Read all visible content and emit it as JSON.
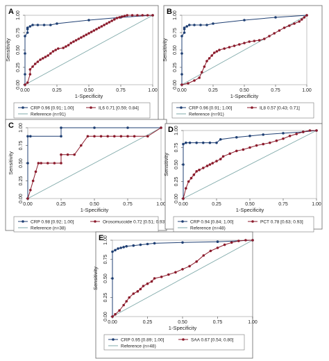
{
  "chart_data": [
    {
      "panel": "A",
      "type": "line",
      "xlabel": "1-Specificity",
      "ylabel": "Sensitivity",
      "xlim": [
        0,
        1
      ],
      "ylim": [
        0,
        1
      ],
      "xticks": [
        "0.00",
        "0.25",
        "0.50",
        "0.75",
        "1.00"
      ],
      "yticks": [
        "0.00",
        "0.25",
        "0.50",
        "0.75",
        "1.00"
      ],
      "legend_position": "bottom",
      "series": [
        {
          "name": "CRP 0.96 [0.91; 1.00]",
          "color": "#1f3f73",
          "marker": "circle",
          "x": [
            0,
            0,
            0,
            0,
            0.02,
            0.02,
            0.02,
            0.04,
            0.06,
            0.1,
            0.15,
            0.2,
            0.25,
            0.5,
            0.75,
            1.0
          ],
          "y": [
            0,
            0.15,
            0.45,
            0.7,
            0.75,
            0.8,
            0.82,
            0.84,
            0.86,
            0.86,
            0.86,
            0.86,
            0.88,
            0.93,
            0.97,
            1.0
          ]
        },
        {
          "name": "IL6 0.71 [0.59; 0.84]",
          "color": "#8b1a2b",
          "marker": "circle",
          "x": [
            0,
            0.02,
            0.04,
            0.04,
            0.06,
            0.08,
            0.1,
            0.12,
            0.14,
            0.16,
            0.18,
            0.2,
            0.22,
            0.24,
            0.26,
            0.3,
            0.32,
            0.34,
            0.36,
            0.38,
            0.4,
            0.42,
            0.44,
            0.46,
            0.48,
            0.5,
            0.52,
            0.54,
            0.56,
            0.58,
            0.6,
            0.62,
            0.64,
            0.66,
            0.68,
            0.7,
            0.72,
            0.74,
            0.76,
            0.78,
            0.8,
            0.84,
            0.88,
            0.92,
            0.96,
            1.0
          ],
          "y": [
            0,
            0.03,
            0.15,
            0.22,
            0.26,
            0.3,
            0.33,
            0.36,
            0.38,
            0.4,
            0.42,
            0.45,
            0.48,
            0.5,
            0.52,
            0.53,
            0.55,
            0.57,
            0.6,
            0.62,
            0.64,
            0.66,
            0.68,
            0.7,
            0.72,
            0.74,
            0.76,
            0.78,
            0.8,
            0.82,
            0.84,
            0.86,
            0.88,
            0.9,
            0.92,
            0.94,
            0.96,
            0.97,
            0.98,
            0.99,
            1.0,
            1.0,
            1.0,
            1.0,
            1.0,
            1.0
          ]
        }
      ],
      "reference": {
        "name": "Reference (n=91)",
        "color": "#7fa9a9"
      }
    },
    {
      "panel": "B",
      "type": "line",
      "xlabel": "1-Specificity",
      "ylabel": "Sensitivity",
      "xlim": [
        0,
        1
      ],
      "ylim": [
        0,
        1
      ],
      "xticks": [
        "0.00",
        "0.25",
        "0.50",
        "0.75",
        "1.00"
      ],
      "yticks": [
        "0.00",
        "0.25",
        "0.50",
        "0.75",
        "1.00"
      ],
      "legend_position": "bottom",
      "series": [
        {
          "name": "CRP 0.96 [0.91; 1.00]",
          "color": "#1f3f73",
          "marker": "circle",
          "x": [
            0,
            0,
            0,
            0,
            0.02,
            0.02,
            0.02,
            0.04,
            0.06,
            0.1,
            0.15,
            0.2,
            0.25,
            0.5,
            0.75,
            1.0
          ],
          "y": [
            0,
            0.15,
            0.45,
            0.7,
            0.75,
            0.8,
            0.82,
            0.84,
            0.86,
            0.86,
            0.86,
            0.86,
            0.88,
            0.93,
            0.97,
            1.0
          ]
        },
        {
          "name": "IL8 0.57 [0.43; 0.71]",
          "color": "#8b1a2b",
          "marker": "circle",
          "x": [
            0,
            0.05,
            0.1,
            0.14,
            0.16,
            0.18,
            0.2,
            0.22,
            0.24,
            0.26,
            0.28,
            0.3,
            0.34,
            0.38,
            0.42,
            0.46,
            0.5,
            0.54,
            0.58,
            0.62,
            0.66,
            0.7,
            0.74,
            0.78,
            0.82,
            0.86,
            0.9,
            0.94,
            0.96,
            0.98,
            1.0
          ],
          "y": [
            0,
            0.02,
            0.06,
            0.1,
            0.18,
            0.26,
            0.34,
            0.38,
            0.42,
            0.46,
            0.48,
            0.5,
            0.52,
            0.54,
            0.56,
            0.58,
            0.6,
            0.62,
            0.63,
            0.64,
            0.66,
            0.7,
            0.74,
            0.78,
            0.82,
            0.85,
            0.88,
            0.91,
            0.94,
            0.97,
            1.0
          ]
        }
      ],
      "reference": {
        "name": "Reference (n=91)",
        "color": "#7fa9a9"
      }
    },
    {
      "panel": "C",
      "type": "line",
      "xlabel": "1-Specificity",
      "ylabel": "Sensitivity",
      "xlim": [
        0,
        1
      ],
      "ylim": [
        0,
        1
      ],
      "xticks": [
        "0.00",
        "0.25",
        "0.50",
        "0.75",
        "1.00"
      ],
      "yticks": [
        "0.00",
        "0.25",
        "0.50",
        "0.75",
        "1.00"
      ],
      "legend_position": "bottom",
      "series": [
        {
          "name": "CRP 0.98 [0.92; 1.00]",
          "color": "#1f3f73",
          "marker": "circle",
          "x": [
            0,
            0,
            0,
            0.02,
            0.25,
            0.25,
            0.5,
            0.75,
            1.0
          ],
          "y": [
            0,
            0.5,
            0.88,
            0.88,
            0.88,
            1.0,
            1.0,
            1.0,
            1.0
          ]
        },
        {
          "name": "Orosomucoide 0.72 [0.51; 0.93]",
          "color": "#8b1a2b",
          "marker": "circle",
          "x": [
            0,
            0.02,
            0.04,
            0.06,
            0.08,
            0.1,
            0.15,
            0.2,
            0.25,
            0.25,
            0.3,
            0.35,
            0.4,
            0.45,
            0.5,
            0.55,
            0.6,
            0.65,
            0.7,
            0.75,
            0.8,
            0.9,
            1.0
          ],
          "y": [
            0,
            0.12,
            0.25,
            0.38,
            0.5,
            0.5,
            0.5,
            0.5,
            0.5,
            0.62,
            0.62,
            0.62,
            0.75,
            0.88,
            0.88,
            0.88,
            0.88,
            0.88,
            0.88,
            0.88,
            0.88,
            0.88,
            1.0
          ]
        }
      ],
      "reference": {
        "name": "Reference (n=38)",
        "color": "#7fa9a9"
      }
    },
    {
      "panel": "D",
      "type": "line",
      "xlabel": "1-Specificity",
      "ylabel": "Sensitivity",
      "xlim": [
        0,
        1
      ],
      "ylim": [
        0,
        1
      ],
      "xticks": [
        "0.00",
        "0.25",
        "0.50",
        "0.75",
        "1.00"
      ],
      "yticks": [
        "0.00",
        "0.25",
        "0.50",
        "0.75",
        "1.00"
      ],
      "legend_position": "bottom",
      "series": [
        {
          "name": "CRP 0.94 [0.84; 1.00]",
          "color": "#1f3f73",
          "marker": "circle",
          "x": [
            0,
            0,
            0,
            0.02,
            0.05,
            0.1,
            0.15,
            0.2,
            0.25,
            0.28,
            0.4,
            0.5,
            0.6,
            0.75,
            0.9,
            1.0
          ],
          "y": [
            0,
            0.5,
            0.8,
            0.82,
            0.82,
            0.82,
            0.82,
            0.82,
            0.82,
            0.87,
            0.9,
            0.92,
            0.94,
            0.96,
            0.98,
            1.0
          ]
        },
        {
          "name": "PCT 0.78 [0.63; 0.93]",
          "color": "#8b1a2b",
          "marker": "circle",
          "x": [
            0,
            0.02,
            0.04,
            0.06,
            0.08,
            0.1,
            0.12,
            0.15,
            0.18,
            0.2,
            0.22,
            0.25,
            0.28,
            0.3,
            0.35,
            0.4,
            0.45,
            0.5,
            0.55,
            0.6,
            0.65,
            0.7,
            0.75,
            0.8,
            0.85,
            0.9,
            0.95,
            1.0
          ],
          "y": [
            0,
            0.15,
            0.25,
            0.3,
            0.35,
            0.4,
            0.42,
            0.45,
            0.48,
            0.5,
            0.52,
            0.55,
            0.58,
            0.62,
            0.66,
            0.7,
            0.72,
            0.75,
            0.78,
            0.8,
            0.82,
            0.85,
            0.88,
            0.92,
            0.95,
            0.98,
            1.0,
            1.0
          ]
        }
      ],
      "reference": {
        "name": "Reference (n=48)",
        "color": "#7fa9a9"
      }
    },
    {
      "panel": "E",
      "type": "line",
      "xlabel": "1-Specificity",
      "ylabel": "Sensitivity",
      "xlim": [
        0,
        1
      ],
      "ylim": [
        0,
        1
      ],
      "xticks": [
        "0.00",
        "0.25",
        "0.50",
        "0.75",
        "1.00"
      ],
      "yticks": [
        "0.00",
        "0.25",
        "0.50",
        "0.75",
        "1.00"
      ],
      "legend_position": "bottom",
      "series": [
        {
          "name": "CRP 0.95 [0.89; 1.00]",
          "color": "#1f3f73",
          "marker": "circle",
          "x": [
            0,
            0,
            0,
            0.02,
            0.04,
            0.06,
            0.08,
            0.1,
            0.15,
            0.2,
            0.25,
            0.3,
            0.5,
            0.75,
            1.0
          ],
          "y": [
            0,
            0.5,
            0.85,
            0.87,
            0.89,
            0.9,
            0.91,
            0.92,
            0.93,
            0.94,
            0.95,
            0.96,
            0.97,
            0.98,
            1.0
          ]
        },
        {
          "name": "SAA 0.67 [0.54; 0.80]",
          "color": "#8b1a2b",
          "marker": "circle",
          "x": [
            0,
            0.02,
            0.05,
            0.08,
            0.1,
            0.12,
            0.15,
            0.18,
            0.2,
            0.22,
            0.25,
            0.28,
            0.3,
            0.35,
            0.4,
            0.45,
            0.5,
            0.55,
            0.6,
            0.65,
            0.7,
            0.75,
            0.8,
            0.85,
            0.9,
            0.95,
            1.0
          ],
          "y": [
            0,
            0.03,
            0.08,
            0.15,
            0.2,
            0.25,
            0.3,
            0.33,
            0.36,
            0.4,
            0.43,
            0.46,
            0.5,
            0.52,
            0.55,
            0.58,
            0.62,
            0.66,
            0.72,
            0.8,
            0.86,
            0.9,
            0.94,
            0.97,
            0.99,
            1.0,
            1.0
          ]
        }
      ],
      "reference": {
        "name": "Reference (n=48)",
        "color": "#7fa9a9"
      }
    }
  ]
}
